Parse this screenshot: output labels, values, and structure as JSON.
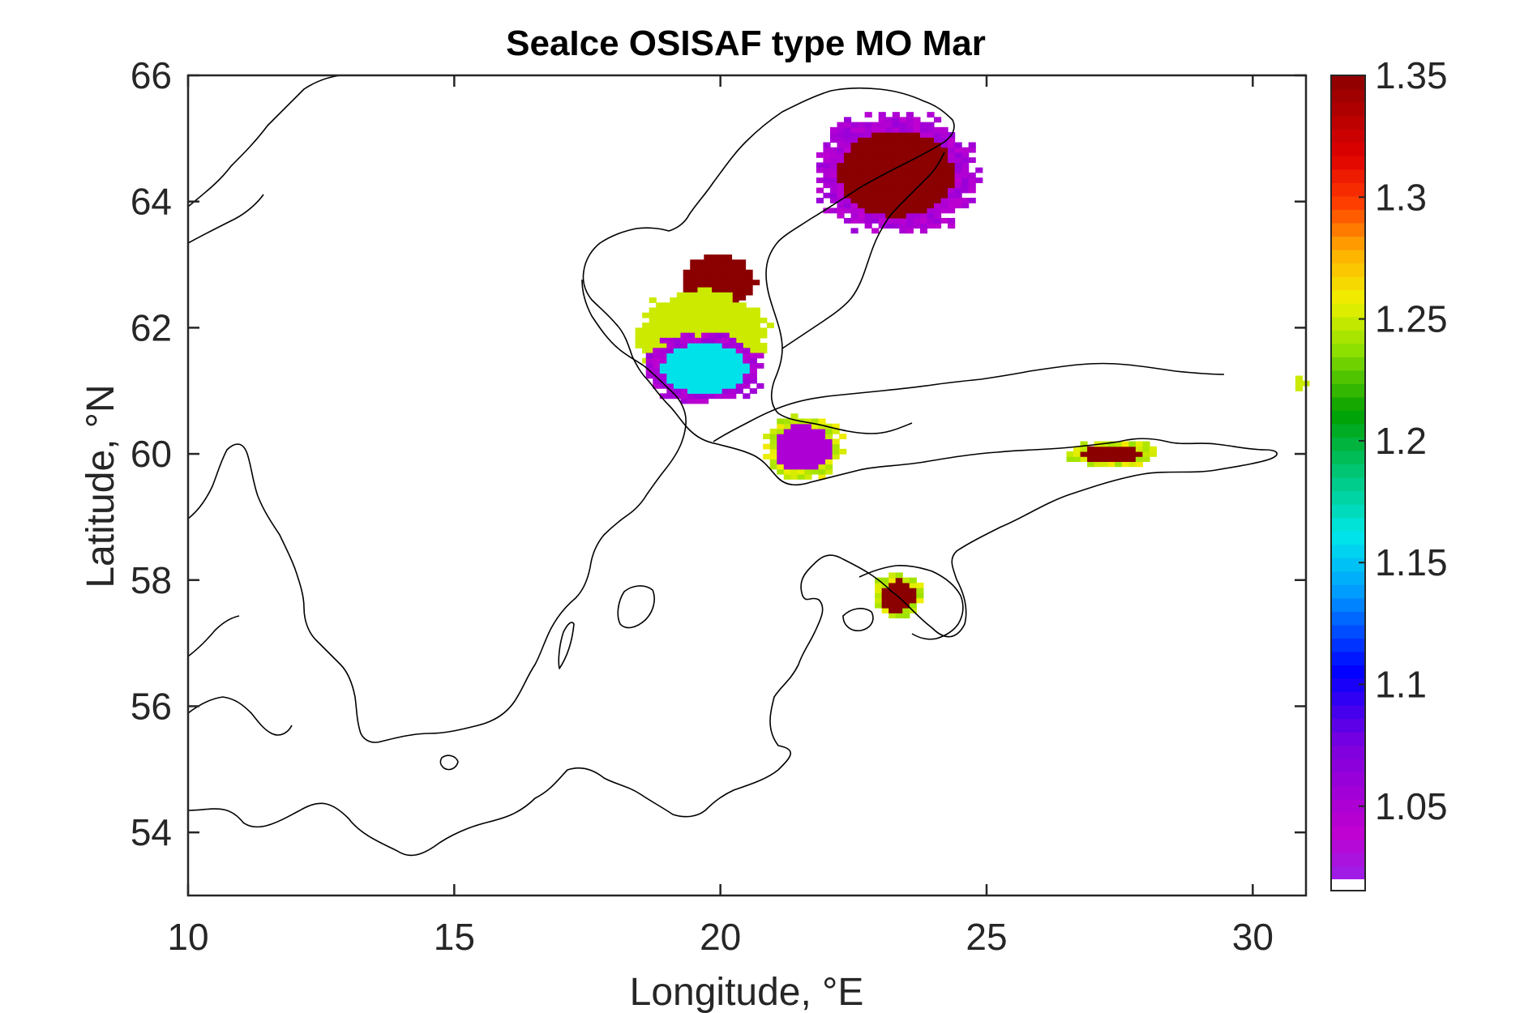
{
  "title": "SeaIce OSISAF type MO Mar",
  "axes": {
    "x": {
      "label": "Longitude, °E",
      "range": [
        10,
        31
      ],
      "ticks": [
        10,
        15,
        20,
        25,
        30
      ],
      "tick_labels": [
        "10",
        "15",
        "20",
        "25",
        "30"
      ]
    },
    "y": {
      "label": "Latitude, °N",
      "range": [
        53,
        66
      ],
      "ticks": [
        54,
        56,
        58,
        60,
        62,
        64,
        66
      ],
      "tick_labels": [
        "54",
        "56",
        "58",
        "60",
        "62",
        "64",
        "66"
      ]
    }
  },
  "colorbar": {
    "range": [
      1.02,
      1.35
    ],
    "ticks": [
      1.05,
      1.1,
      1.15,
      1.2,
      1.25,
      1.3,
      1.35
    ],
    "tick_labels": [
      "1.05",
      "1.1",
      "1.15",
      "1.2",
      "1.25",
      "1.3",
      "1.35"
    ],
    "colormap": "purple-blue-cyan-green-yellow-red-darkred",
    "colors": [
      "#9b1fe8",
      "#c000d0",
      "#7a00e0",
      "#0000ff",
      "#00a0ff",
      "#00e8e8",
      "#00c060",
      "#00a000",
      "#90e000",
      "#f0f000",
      "#ffb000",
      "#ff4000",
      "#e00000",
      "#8b0000"
    ]
  },
  "map": {
    "region": "Baltic Sea",
    "coastline_color": "#000000",
    "land_color": "#ffffff",
    "sea_color": "#ffffff"
  },
  "chart_data": {
    "type": "heatmap",
    "title": "SeaIce OSISAF type MO Mar",
    "xlabel": "Longitude, °E",
    "ylabel": "Latitude, °N",
    "xlim": [
      10,
      31
    ],
    "ylim": [
      53,
      66
    ],
    "clim": [
      1.02,
      1.35
    ],
    "patches": [
      {
        "region": "Bay of Bothnia",
        "lon": [
          21.8,
          24.8
        ],
        "lat": [
          63.5,
          65.4
        ],
        "value": 1.35,
        "edge_value": 1.05
      },
      {
        "region": "Bothnian Sea north",
        "lon": [
          19.3,
          20.6
        ],
        "lat": [
          62.2,
          63.2
        ],
        "value": 1.35
      },
      {
        "region": "Bothnian Sea central",
        "lon": [
          18.4,
          20.9
        ],
        "lat": [
          61.2,
          62.6
        ],
        "value": 1.25
      },
      {
        "region": "Bothnian Sea south",
        "lon": [
          18.6,
          20.8
        ],
        "lat": [
          60.8,
          61.9
        ],
        "value": 1.16,
        "edge_value": 1.05
      },
      {
        "region": "Aland Sea",
        "lon": [
          20.8,
          22.3
        ],
        "lat": [
          59.6,
          60.6
        ],
        "value": 1.05,
        "edge_value": 1.25
      },
      {
        "region": "Gulf of Finland east",
        "lon": [
          26.5,
          28.2
        ],
        "lat": [
          59.8,
          60.2
        ],
        "value": 1.35,
        "edge_value": 1.25
      },
      {
        "region": "Gulf of Riga",
        "lon": [
          22.9,
          23.8
        ],
        "lat": [
          57.4,
          58.1
        ],
        "value": 1.35,
        "edge_value": 1.25
      },
      {
        "region": "Lake Ladoga edge",
        "lon": [
          30.8,
          31.0
        ],
        "lat": [
          61.0,
          61.2
        ],
        "value": 1.25
      }
    ]
  }
}
